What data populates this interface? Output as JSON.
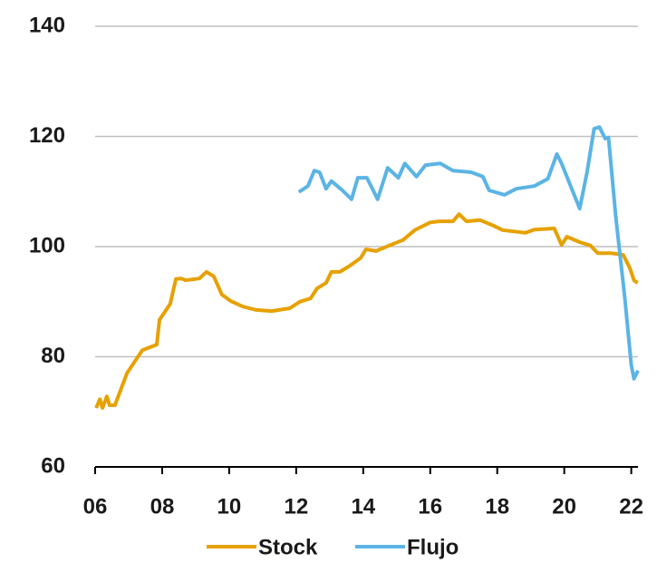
{
  "chart_data": {
    "type": "line",
    "xlim": [
      2006,
      2022.2
    ],
    "ylim": [
      60,
      140
    ],
    "xticks": [
      {
        "value": 2006,
        "label": "06"
      },
      {
        "value": 2008,
        "label": "08"
      },
      {
        "value": 2010,
        "label": "10"
      },
      {
        "value": 2012,
        "label": "12"
      },
      {
        "value": 2014,
        "label": "14"
      },
      {
        "value": 2016,
        "label": "16"
      },
      {
        "value": 2018,
        "label": "18"
      },
      {
        "value": 2020,
        "label": "20"
      },
      {
        "value": 2022,
        "label": "22"
      }
    ],
    "yticks": [
      60,
      80,
      100,
      120,
      140
    ],
    "grid": true,
    "legend": "bottom",
    "series": [
      {
        "name": "Stock",
        "color": "#e6a100",
        "x": [
          2006.03,
          2006.14,
          2006.22,
          2006.35,
          2006.43,
          2006.59,
          2006.95,
          2007.41,
          2007.84,
          2007.92,
          2008.24,
          2008.41,
          2008.57,
          2008.7,
          2009.11,
          2009.32,
          2009.54,
          2009.78,
          2010.05,
          2010.41,
          2010.81,
          2011.27,
          2011.81,
          2012.11,
          2012.43,
          2012.62,
          2012.89,
          2013.05,
          2013.3,
          2013.57,
          2013.92,
          2014.08,
          2014.38,
          2014.78,
          2015.19,
          2015.54,
          2016.0,
          2016.27,
          2016.68,
          2016.86,
          2017.08,
          2017.49,
          2017.89,
          2018.16,
          2018.84,
          2019.11,
          2019.7,
          2019.92,
          2020.08,
          2020.46,
          2020.78,
          2021.0,
          2021.41,
          2021.76,
          2021.95,
          2022.08,
          2022.19
        ],
        "values": [
          70.7,
          72.3,
          70.7,
          72.8,
          71.2,
          71.2,
          77,
          81.2,
          82.2,
          86.7,
          89.6,
          94.1,
          94.2,
          93.9,
          94.2,
          95.4,
          94.6,
          91.3,
          90.1,
          89.1,
          88.5,
          88.3,
          88.8,
          90,
          90.6,
          92.4,
          93.4,
          95.4,
          95.4,
          96.4,
          97.9,
          99.5,
          99.2,
          100.2,
          101.2,
          103,
          104.4,
          104.6,
          104.6,
          105.9,
          104.6,
          104.8,
          103.8,
          103,
          102.5,
          103.1,
          103.3,
          100.3,
          101.8,
          100.8,
          100.2,
          98.8,
          98.8,
          98.5,
          96.2,
          93.9,
          93.4
        ]
      },
      {
        "name": "Flujo",
        "color": "#5bb4e5",
        "x": [
          2012.08,
          2012.35,
          2012.54,
          2012.7,
          2012.89,
          2013.05,
          2013.38,
          2013.65,
          2013.84,
          2014.11,
          2014.43,
          2014.73,
          2015.05,
          2015.24,
          2015.59,
          2015.86,
          2016.3,
          2016.68,
          2017.22,
          2017.57,
          2017.76,
          2018.22,
          2018.57,
          2019.11,
          2019.51,
          2019.78,
          2019.92,
          2020.19,
          2020.46,
          2020.68,
          2020.89,
          2021.05,
          2021.22,
          2021.32,
          2021.54,
          2021.81,
          2022.0,
          2022.08,
          2022.2
        ],
        "values": [
          109.9,
          111,
          113.8,
          113.5,
          110.5,
          111.9,
          110.2,
          108.6,
          112.5,
          112.5,
          108.6,
          114.3,
          112.5,
          115.1,
          112.7,
          114.8,
          115.1,
          113.8,
          113.5,
          112.7,
          110.2,
          109.4,
          110.5,
          111,
          112.3,
          116.8,
          115.1,
          111,
          106.9,
          113.5,
          121.4,
          121.7,
          119.6,
          119.8,
          105.3,
          90.5,
          78.5,
          76,
          77.5
        ]
      }
    ]
  }
}
